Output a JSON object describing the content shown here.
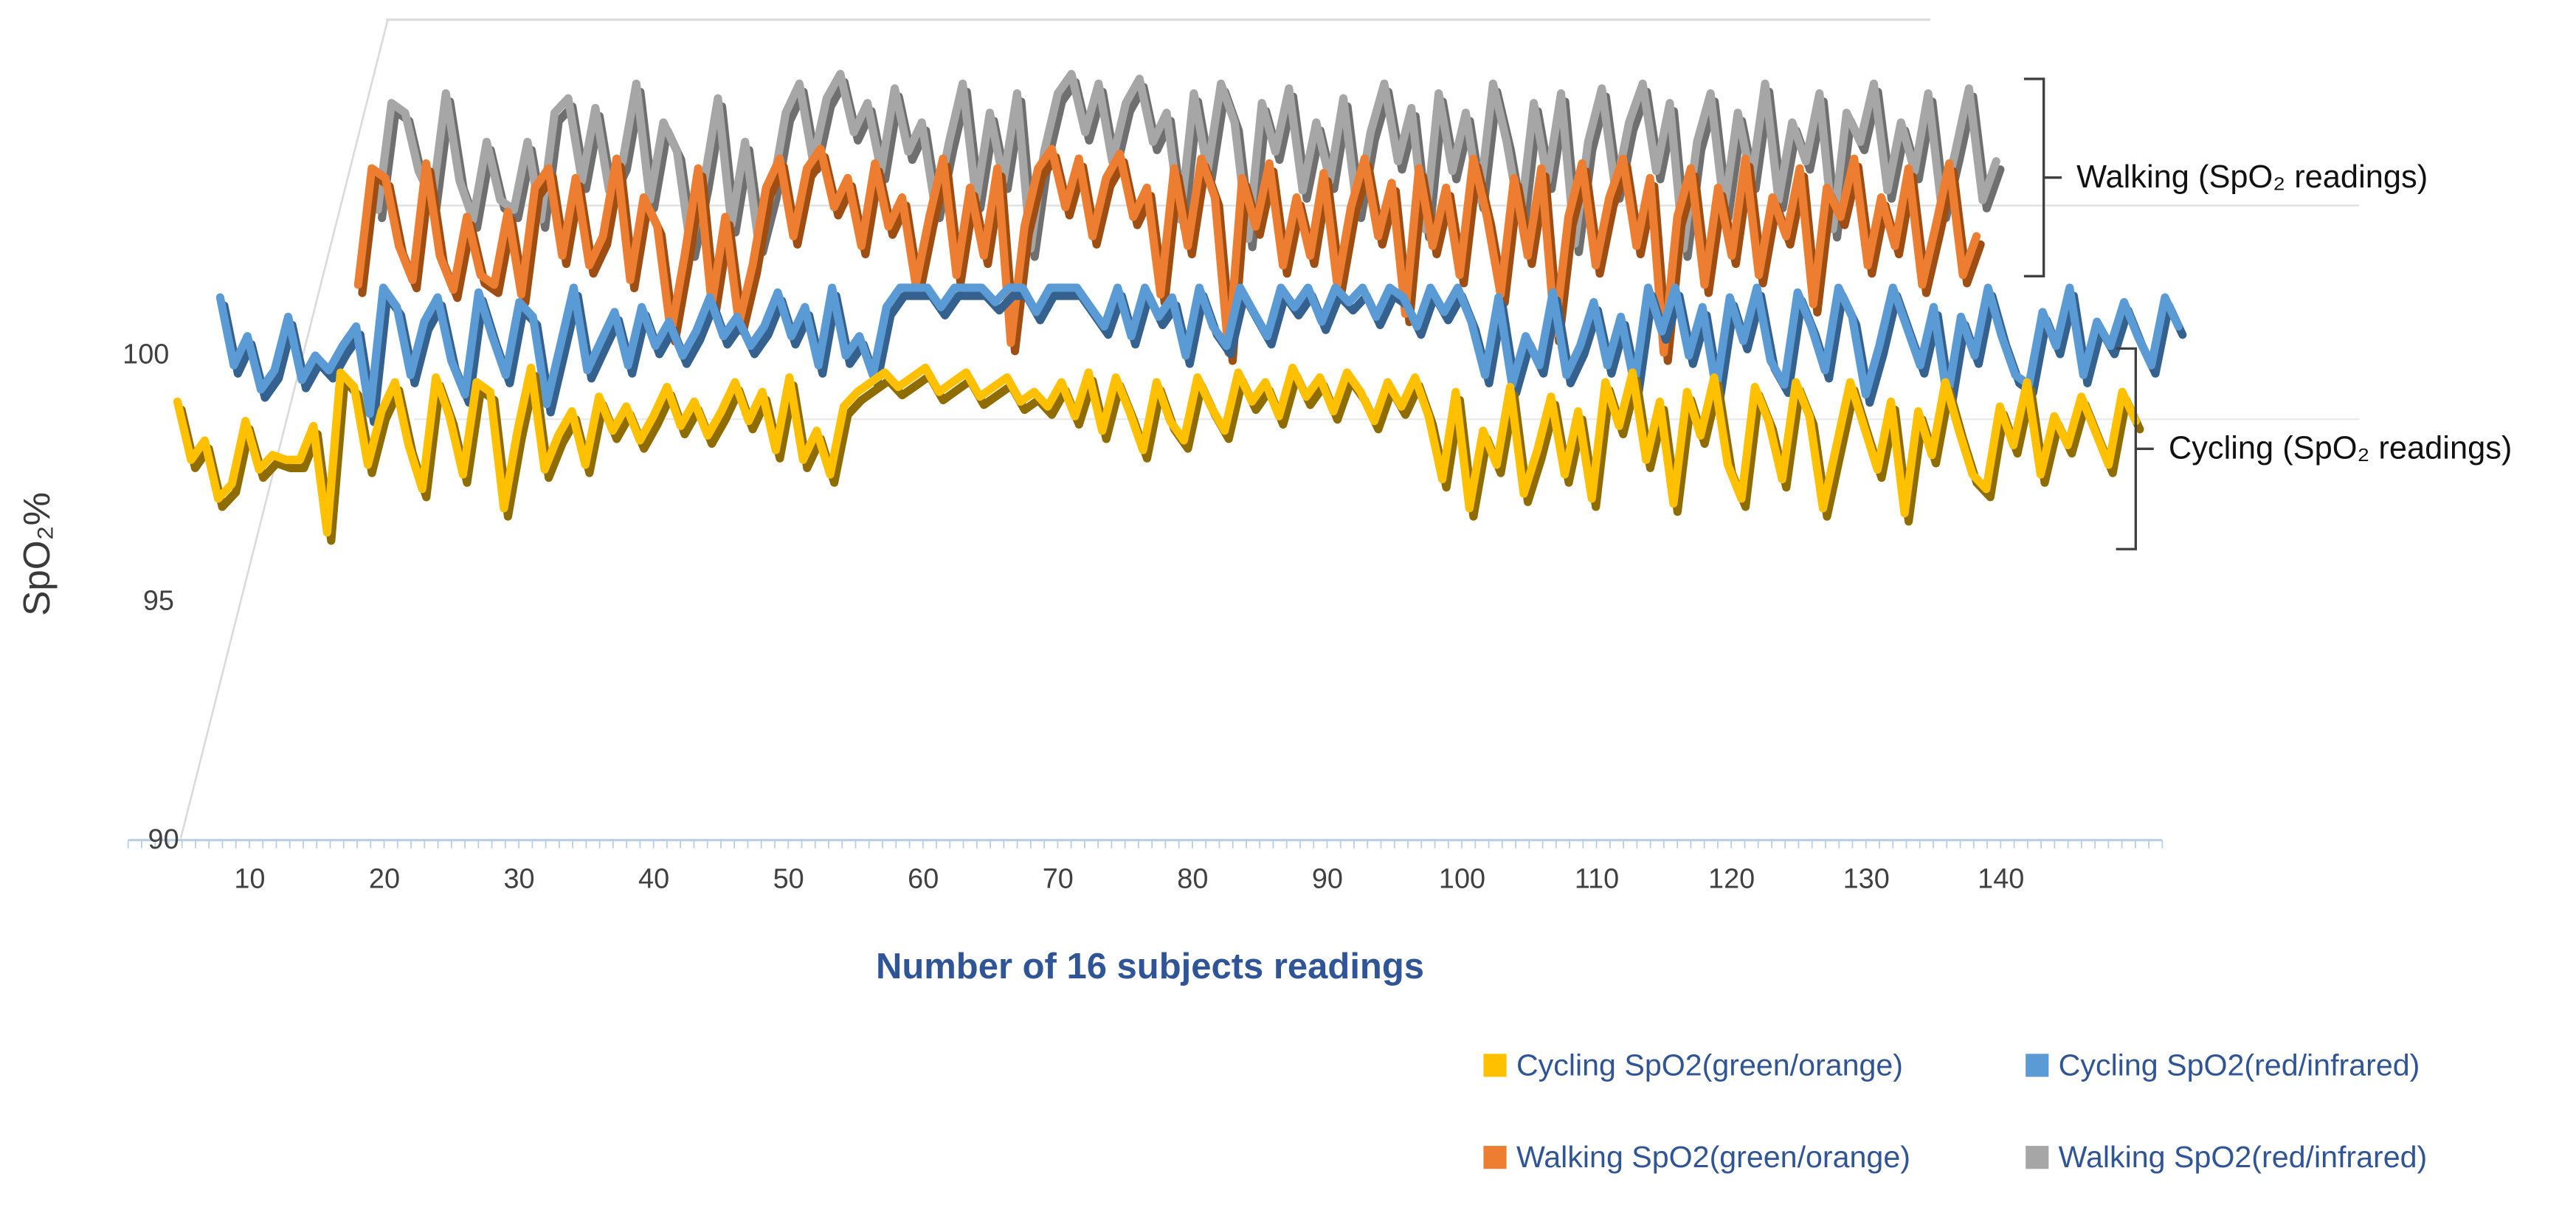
{
  "axes": {
    "y_title": "SpO₂%",
    "x_title": "Number of 16 subjects readings"
  },
  "annotations": {
    "walking": "Walking (SpO₂ readings)",
    "cycling": "Cycling (SpO₂ readings)"
  },
  "chart_data": {
    "type": "line",
    "style": "3d-ribbon-line",
    "title": "",
    "xlabel": "Number of 16 subjects readings",
    "ylabel": "SpO₂%",
    "ylim": [
      90,
      100
    ],
    "y_ticks": [
      90,
      95,
      100
    ],
    "x_ticks": [
      10,
      20,
      30,
      40,
      50,
      60,
      70,
      80,
      90,
      100,
      110,
      120,
      130,
      140
    ],
    "legend_position": "bottom-right",
    "grid": "perspective gridlines, light gray",
    "group_labels": [
      "Walking (SpO₂ readings)",
      "Cycling (SpO₂ readings)"
    ],
    "series": [
      {
        "name": "Cycling SpO2(green/orange)",
        "color": "#FFC000",
        "edge_color": "#8E6C00",
        "values": [
          98.6,
          97.4,
          97.8,
          96.6,
          96.9,
          98.2,
          97.2,
          97.5,
          97.4,
          97.4,
          98.1,
          95.9,
          99.2,
          98.9,
          97.3,
          98.4,
          99.0,
          97.7,
          96.8,
          99.1,
          98.3,
          97.1,
          99.0,
          98.8,
          96.4,
          98.0,
          99.3,
          97.2,
          97.9,
          98.4,
          97.3,
          98.7,
          98.0,
          98.5,
          97.8,
          98.3,
          98.9,
          98.1,
          98.6,
          97.9,
          98.4,
          99.0,
          98.2,
          98.8,
          97.6,
          99.1,
          97.4,
          98.0,
          97.1,
          98.5,
          98.8,
          99.0,
          99.2,
          98.9,
          99.1,
          99.3,
          98.8,
          99.0,
          99.2,
          98.7,
          98.9,
          99.1,
          98.6,
          98.8,
          98.5,
          99.0,
          98.3,
          99.2,
          98.0,
          99.1,
          98.4,
          97.6,
          99.0,
          98.2,
          97.8,
          99.1,
          98.5,
          98.0,
          99.2,
          98.6,
          99.0,
          98.3,
          99.3,
          98.7,
          99.1,
          98.4,
          99.2,
          98.8,
          98.2,
          99.0,
          98.5,
          99.1,
          98.3,
          97.0,
          98.8,
          96.4,
          98.0,
          97.3,
          98.9,
          96.7,
          97.6,
          98.7,
          97.1,
          98.4,
          96.6,
          99.0,
          98.1,
          99.2,
          97.4,
          98.6,
          96.5,
          98.8,
          97.9,
          99.1,
          97.3,
          96.6,
          98.9,
          98.2,
          97.0,
          99.0,
          98.3,
          96.4,
          97.7,
          99.0,
          98.1,
          97.2,
          98.6,
          96.3,
          98.4,
          97.5,
          99.0,
          98.0,
          97.1,
          96.8,
          98.5,
          97.7,
          99.0,
          97.1,
          98.3,
          97.7,
          98.7,
          98.0,
          97.3,
          98.8,
          98.2
        ]
      },
      {
        "name": "Cycling SpO2(red/infrared)",
        "color": "#5B9BD5",
        "edge_color": "#35618E",
        "values": [
          99.8,
          98.4,
          99.0,
          97.9,
          98.3,
          99.4,
          98.1,
          98.6,
          98.3,
          98.8,
          99.2,
          97.4,
          100,
          99.6,
          98.2,
          99.3,
          99.8,
          98.5,
          97.8,
          99.9,
          99.0,
          98.2,
          99.7,
          99.4,
          97.6,
          98.8,
          100,
          98.3,
          98.9,
          99.5,
          98.4,
          99.6,
          98.8,
          99.3,
          98.6,
          99.1,
          99.8,
          99.0,
          99.4,
          98.8,
          99.2,
          99.9,
          99.0,
          99.6,
          98.4,
          100,
          98.6,
          99.0,
          98.2,
          99.6,
          100,
          100,
          100,
          99.6,
          100,
          100,
          100,
          99.7,
          100,
          100,
          99.5,
          100,
          100,
          100,
          99.6,
          99.2,
          100,
          99.0,
          100,
          99.4,
          99.8,
          98.6,
          100,
          99.2,
          98.8,
          100,
          99.5,
          99.0,
          100,
          99.6,
          100,
          99.3,
          100,
          99.7,
          100,
          99.4,
          100,
          99.8,
          99.2,
          100,
          99.5,
          100,
          99.3,
          98.2,
          99.8,
          98.0,
          99.0,
          98.4,
          99.9,
          98.2,
          98.8,
          99.7,
          98.4,
          99.4,
          98.0,
          100,
          99.1,
          100,
          98.6,
          99.6,
          97.9,
          99.8,
          98.9,
          100,
          98.5,
          98.0,
          99.9,
          99.2,
          98.3,
          100,
          99.4,
          97.8,
          98.8,
          100,
          99.2,
          98.4,
          99.6,
          97.7,
          99.4,
          98.6,
          100,
          99.0,
          98.2,
          98.0,
          99.5,
          98.8,
          100,
          98.2,
          99.3,
          98.8,
          99.7,
          99.0,
          98.4,
          99.8,
          99.2
        ]
      },
      {
        "name": "Walking SpO2(green/orange)",
        "color": "#ED7D31",
        "edge_color": "#9E4E13",
        "values": [
          96.4,
          98.8,
          98.6,
          97.2,
          96.5,
          98.9,
          97.0,
          96.3,
          97.8,
          96.6,
          96.4,
          97.9,
          96.2,
          98.4,
          98.8,
          97.0,
          98.6,
          96.8,
          97.4,
          99.0,
          96.5,
          98.2,
          97.6,
          95.4,
          97.0,
          98.8,
          96.0,
          97.8,
          95.6,
          96.8,
          98.4,
          99.0,
          97.4,
          98.8,
          99.2,
          98.0,
          98.6,
          97.2,
          98.9,
          97.6,
          98.2,
          96.4,
          97.8,
          99.0,
          96.6,
          98.4,
          97.0,
          98.8,
          95.2,
          97.6,
          98.8,
          99.2,
          98.0,
          99.0,
          97.4,
          98.6,
          99.1,
          97.8,
          98.4,
          96.2,
          98.8,
          97.2,
          99.0,
          98.2,
          95.0,
          98.6,
          97.6,
          98.9,
          96.8,
          98.2,
          97.0,
          98.7,
          96.4,
          98.0,
          99.0,
          97.4,
          98.5,
          95.8,
          98.8,
          97.2,
          98.4,
          96.6,
          99.0,
          97.8,
          96.2,
          98.6,
          97.0,
          98.8,
          95.4,
          97.8,
          98.9,
          96.8,
          98.2,
          99.0,
          97.2,
          98.6,
          95.0,
          97.8,
          98.8,
          96.4,
          98.4,
          97.0,
          99.0,
          96.6,
          98.2,
          97.4,
          98.8,
          96.0,
          98.4,
          97.8,
          99.0,
          96.8,
          98.2,
          97.2,
          98.8,
          96.4,
          97.6,
          98.9,
          96.6,
          97.4
        ]
      },
      {
        "name": "Walking SpO2(red/infrared)",
        "color": "#A6A6A6",
        "edge_color": "#6F6F6F",
        "values": [
          97.2,
          99.4,
          99.2,
          98.0,
          97.4,
          99.6,
          97.8,
          97.0,
          98.6,
          97.4,
          97.2,
          98.6,
          97.0,
          99.2,
          99.5,
          97.8,
          99.3,
          97.6,
          98.2,
          99.8,
          97.4,
          99.0,
          98.4,
          96.4,
          97.8,
          99.5,
          96.9,
          98.6,
          96.5,
          97.6,
          99.2,
          99.8,
          98.2,
          99.5,
          100,
          98.8,
          99.4,
          98.0,
          99.7,
          98.4,
          99.0,
          97.2,
          98.6,
          99.8,
          97.4,
          99.2,
          97.8,
          99.6,
          96.4,
          98.4,
          99.6,
          100,
          98.8,
          99.8,
          98.2,
          99.4,
          99.9,
          98.6,
          99.2,
          97.0,
          99.6,
          98.0,
          99.8,
          99.0,
          96.6,
          99.4,
          98.4,
          99.7,
          97.6,
          99.0,
          97.8,
          99.5,
          97.2,
          98.8,
          99.8,
          98.2,
          99.3,
          96.8,
          99.6,
          98.0,
          99.2,
          97.4,
          99.8,
          98.6,
          97.0,
          99.4,
          97.8,
          99.6,
          96.5,
          98.6,
          99.7,
          97.6,
          99.0,
          99.8,
          98.0,
          99.4,
          96.4,
          98.6,
          99.6,
          97.2,
          99.2,
          97.8,
          99.8,
          97.4,
          99.0,
          98.2,
          99.6,
          96.8,
          99.2,
          98.6,
          99.8,
          97.6,
          99.0,
          98.0,
          99.6,
          97.2,
          98.4,
          99.7,
          97.4,
          98.2
        ]
      }
    ]
  }
}
